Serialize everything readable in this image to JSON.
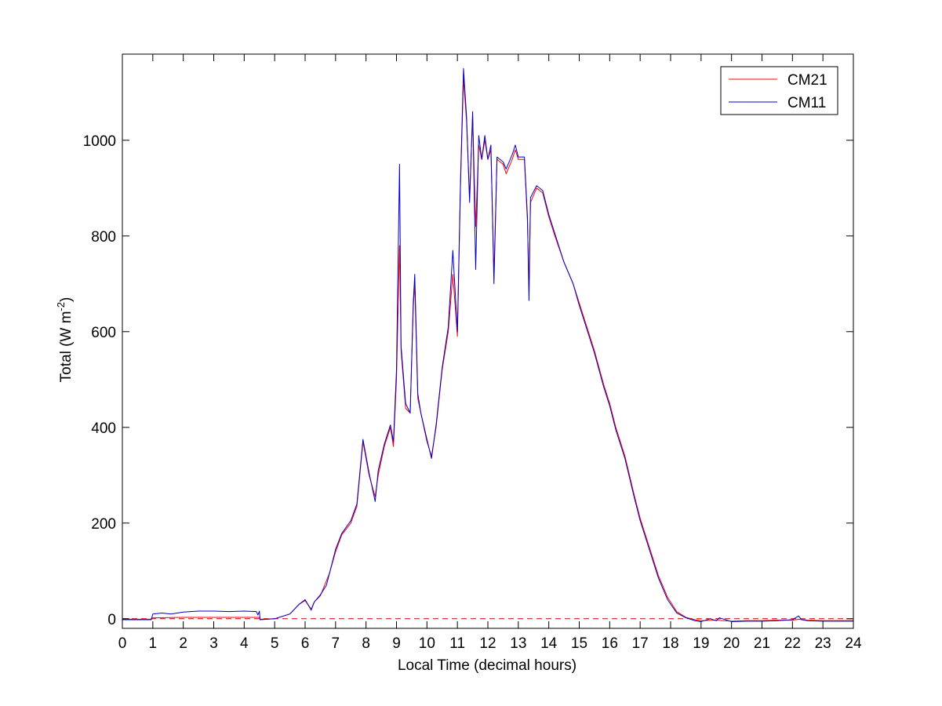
{
  "chart_data": {
    "type": "line",
    "xlabel": "Local Time (decimal hours)",
    "ylabel": "Total (W m",
    "ylabel_sup": "-2",
    "ylabel_end": ")",
    "xlim": [
      0,
      24
    ],
    "ylim": [
      -20,
      1180
    ],
    "xticks": [
      0,
      1,
      2,
      3,
      4,
      5,
      6,
      7,
      8,
      9,
      10,
      11,
      12,
      13,
      14,
      15,
      16,
      17,
      18,
      19,
      20,
      21,
      22,
      23,
      24
    ],
    "xtick_labels": [
      "0",
      "1",
      "2",
      "3",
      "4",
      "5",
      "6",
      "7",
      "8",
      "9",
      "10",
      "11",
      "12",
      "13",
      "14",
      "15",
      "16",
      "17",
      "18",
      "19",
      "20",
      "21",
      "22",
      "23",
      "24"
    ],
    "yticks": [
      0,
      200,
      400,
      600,
      800,
      1000
    ],
    "ytick_labels": [
      "0",
      "200",
      "400",
      "600",
      "800",
      "1000"
    ],
    "grid": false,
    "legend_position": "top-right",
    "reference_line": {
      "y": 0,
      "style": "dashed",
      "color": "#c00000"
    },
    "series": [
      {
        "name": "CM21",
        "color": "#ff0000",
        "points": [
          [
            0,
            -1
          ],
          [
            0.95,
            -1
          ],
          [
            1.0,
            2
          ],
          [
            2.0,
            3
          ],
          [
            3.0,
            3
          ],
          [
            4.0,
            3
          ],
          [
            4.5,
            3
          ],
          [
            4.52,
            -1
          ],
          [
            5.0,
            0
          ],
          [
            5.5,
            10
          ],
          [
            5.8,
            30
          ],
          [
            6.0,
            38
          ],
          [
            6.2,
            20
          ],
          [
            6.3,
            35
          ],
          [
            6.5,
            48
          ],
          [
            6.8,
            95
          ],
          [
            7.0,
            140
          ],
          [
            7.2,
            175
          ],
          [
            7.5,
            200
          ],
          [
            7.7,
            235
          ],
          [
            7.9,
            370
          ],
          [
            8.1,
            300
          ],
          [
            8.3,
            255
          ],
          [
            8.4,
            300
          ],
          [
            8.6,
            360
          ],
          [
            8.8,
            400
          ],
          [
            8.9,
            360
          ],
          [
            9.0,
            500
          ],
          [
            9.1,
            780
          ],
          [
            9.15,
            560
          ],
          [
            9.3,
            440
          ],
          [
            9.45,
            430
          ],
          [
            9.55,
            650
          ],
          [
            9.6,
            700
          ],
          [
            9.7,
            460
          ],
          [
            9.8,
            430
          ],
          [
            10.0,
            370
          ],
          [
            10.15,
            340
          ],
          [
            10.3,
            400
          ],
          [
            10.5,
            520
          ],
          [
            10.7,
            600
          ],
          [
            10.85,
            720
          ],
          [
            11.0,
            590
          ],
          [
            11.1,
            900
          ],
          [
            11.2,
            1130
          ],
          [
            11.3,
            1040
          ],
          [
            11.4,
            880
          ],
          [
            11.5,
            1050
          ],
          [
            11.6,
            820
          ],
          [
            11.7,
            990
          ],
          [
            11.8,
            960
          ],
          [
            11.9,
            1000
          ],
          [
            12.0,
            960
          ],
          [
            12.1,
            980
          ],
          [
            12.2,
            720
          ],
          [
            12.3,
            960
          ],
          [
            12.5,
            950
          ],
          [
            12.6,
            930
          ],
          [
            12.8,
            960
          ],
          [
            12.9,
            980
          ],
          [
            13.0,
            960
          ],
          [
            13.2,
            960
          ],
          [
            13.3,
            830
          ],
          [
            13.35,
            690
          ],
          [
            13.4,
            870
          ],
          [
            13.6,
            900
          ],
          [
            13.8,
            890
          ],
          [
            14.0,
            840
          ],
          [
            14.2,
            800
          ],
          [
            14.5,
            745
          ],
          [
            14.8,
            700
          ],
          [
            15.0,
            660
          ],
          [
            15.2,
            620
          ],
          [
            15.5,
            560
          ],
          [
            15.8,
            490
          ],
          [
            16.0,
            450
          ],
          [
            16.2,
            400
          ],
          [
            16.5,
            340
          ],
          [
            16.8,
            260
          ],
          [
            17.0,
            210
          ],
          [
            17.3,
            150
          ],
          [
            17.6,
            90
          ],
          [
            17.9,
            45
          ],
          [
            18.2,
            15
          ],
          [
            18.5,
            3
          ],
          [
            18.8,
            -2
          ],
          [
            19.0,
            -4
          ],
          [
            19.5,
            -3
          ],
          [
            20.0,
            -5
          ],
          [
            20.5,
            -4
          ],
          [
            21.0,
            -4
          ],
          [
            21.5,
            -3
          ],
          [
            22.0,
            -3
          ],
          [
            22.2,
            -1
          ],
          [
            22.5,
            -3
          ],
          [
            23.0,
            -4
          ],
          [
            24,
            -4
          ]
        ]
      },
      {
        "name": "CM11",
        "color": "#0000cc",
        "points": [
          [
            0,
            -2
          ],
          [
            0.95,
            -2
          ],
          [
            1.0,
            10
          ],
          [
            1.3,
            12
          ],
          [
            1.6,
            10
          ],
          [
            2.0,
            14
          ],
          [
            2.5,
            16
          ],
          [
            3.0,
            16
          ],
          [
            3.5,
            15
          ],
          [
            4.0,
            16
          ],
          [
            4.4,
            15
          ],
          [
            4.45,
            8
          ],
          [
            4.5,
            16
          ],
          [
            4.52,
            -2
          ],
          [
            5.0,
            0
          ],
          [
            5.5,
            10
          ],
          [
            5.8,
            30
          ],
          [
            6.0,
            40
          ],
          [
            6.2,
            18
          ],
          [
            6.3,
            35
          ],
          [
            6.5,
            50
          ],
          [
            6.7,
            70
          ],
          [
            6.8,
            95
          ],
          [
            7.0,
            145
          ],
          [
            7.2,
            178
          ],
          [
            7.5,
            205
          ],
          [
            7.7,
            240
          ],
          [
            7.9,
            375
          ],
          [
            8.1,
            305
          ],
          [
            8.3,
            245
          ],
          [
            8.4,
            310
          ],
          [
            8.6,
            365
          ],
          [
            8.8,
            405
          ],
          [
            8.9,
            370
          ],
          [
            9.0,
            520
          ],
          [
            9.1,
            950
          ],
          [
            9.15,
            570
          ],
          [
            9.3,
            450
          ],
          [
            9.45,
            430
          ],
          [
            9.55,
            660
          ],
          [
            9.6,
            720
          ],
          [
            9.7,
            470
          ],
          [
            9.8,
            430
          ],
          [
            10.0,
            375
          ],
          [
            10.15,
            335
          ],
          [
            10.3,
            405
          ],
          [
            10.5,
            525
          ],
          [
            10.7,
            610
          ],
          [
            10.85,
            770
          ],
          [
            11.0,
            600
          ],
          [
            11.1,
            910
          ],
          [
            11.2,
            1150
          ],
          [
            11.3,
            1050
          ],
          [
            11.4,
            870
          ],
          [
            11.5,
            1060
          ],
          [
            11.6,
            730
          ],
          [
            11.7,
            1010
          ],
          [
            11.8,
            960
          ],
          [
            11.9,
            1010
          ],
          [
            12.0,
            960
          ],
          [
            12.1,
            990
          ],
          [
            12.2,
            700
          ],
          [
            12.3,
            965
          ],
          [
            12.5,
            955
          ],
          [
            12.6,
            940
          ],
          [
            12.8,
            970
          ],
          [
            12.9,
            990
          ],
          [
            13.0,
            965
          ],
          [
            13.2,
            965
          ],
          [
            13.3,
            840
          ],
          [
            13.35,
            665
          ],
          [
            13.4,
            880
          ],
          [
            13.6,
            905
          ],
          [
            13.8,
            895
          ],
          [
            14.0,
            845
          ],
          [
            14.2,
            805
          ],
          [
            14.5,
            745
          ],
          [
            14.8,
            700
          ],
          [
            15.0,
            655
          ],
          [
            15.2,
            615
          ],
          [
            15.5,
            555
          ],
          [
            15.8,
            485
          ],
          [
            16.0,
            445
          ],
          [
            16.2,
            395
          ],
          [
            16.5,
            335
          ],
          [
            16.8,
            255
          ],
          [
            17.0,
            205
          ],
          [
            17.3,
            145
          ],
          [
            17.6,
            85
          ],
          [
            17.9,
            40
          ],
          [
            18.2,
            12
          ],
          [
            18.5,
            2
          ],
          [
            18.8,
            -4
          ],
          [
            19.0,
            -6
          ],
          [
            19.3,
            0
          ],
          [
            19.5,
            -4
          ],
          [
            19.6,
            2
          ],
          [
            20.0,
            -6
          ],
          [
            20.5,
            -5
          ],
          [
            21.0,
            -5
          ],
          [
            21.5,
            -4
          ],
          [
            22.0,
            -2
          ],
          [
            22.2,
            6
          ],
          [
            22.3,
            -2
          ],
          [
            22.5,
            -4
          ],
          [
            23.0,
            -5
          ],
          [
            24,
            -5
          ]
        ]
      }
    ]
  }
}
